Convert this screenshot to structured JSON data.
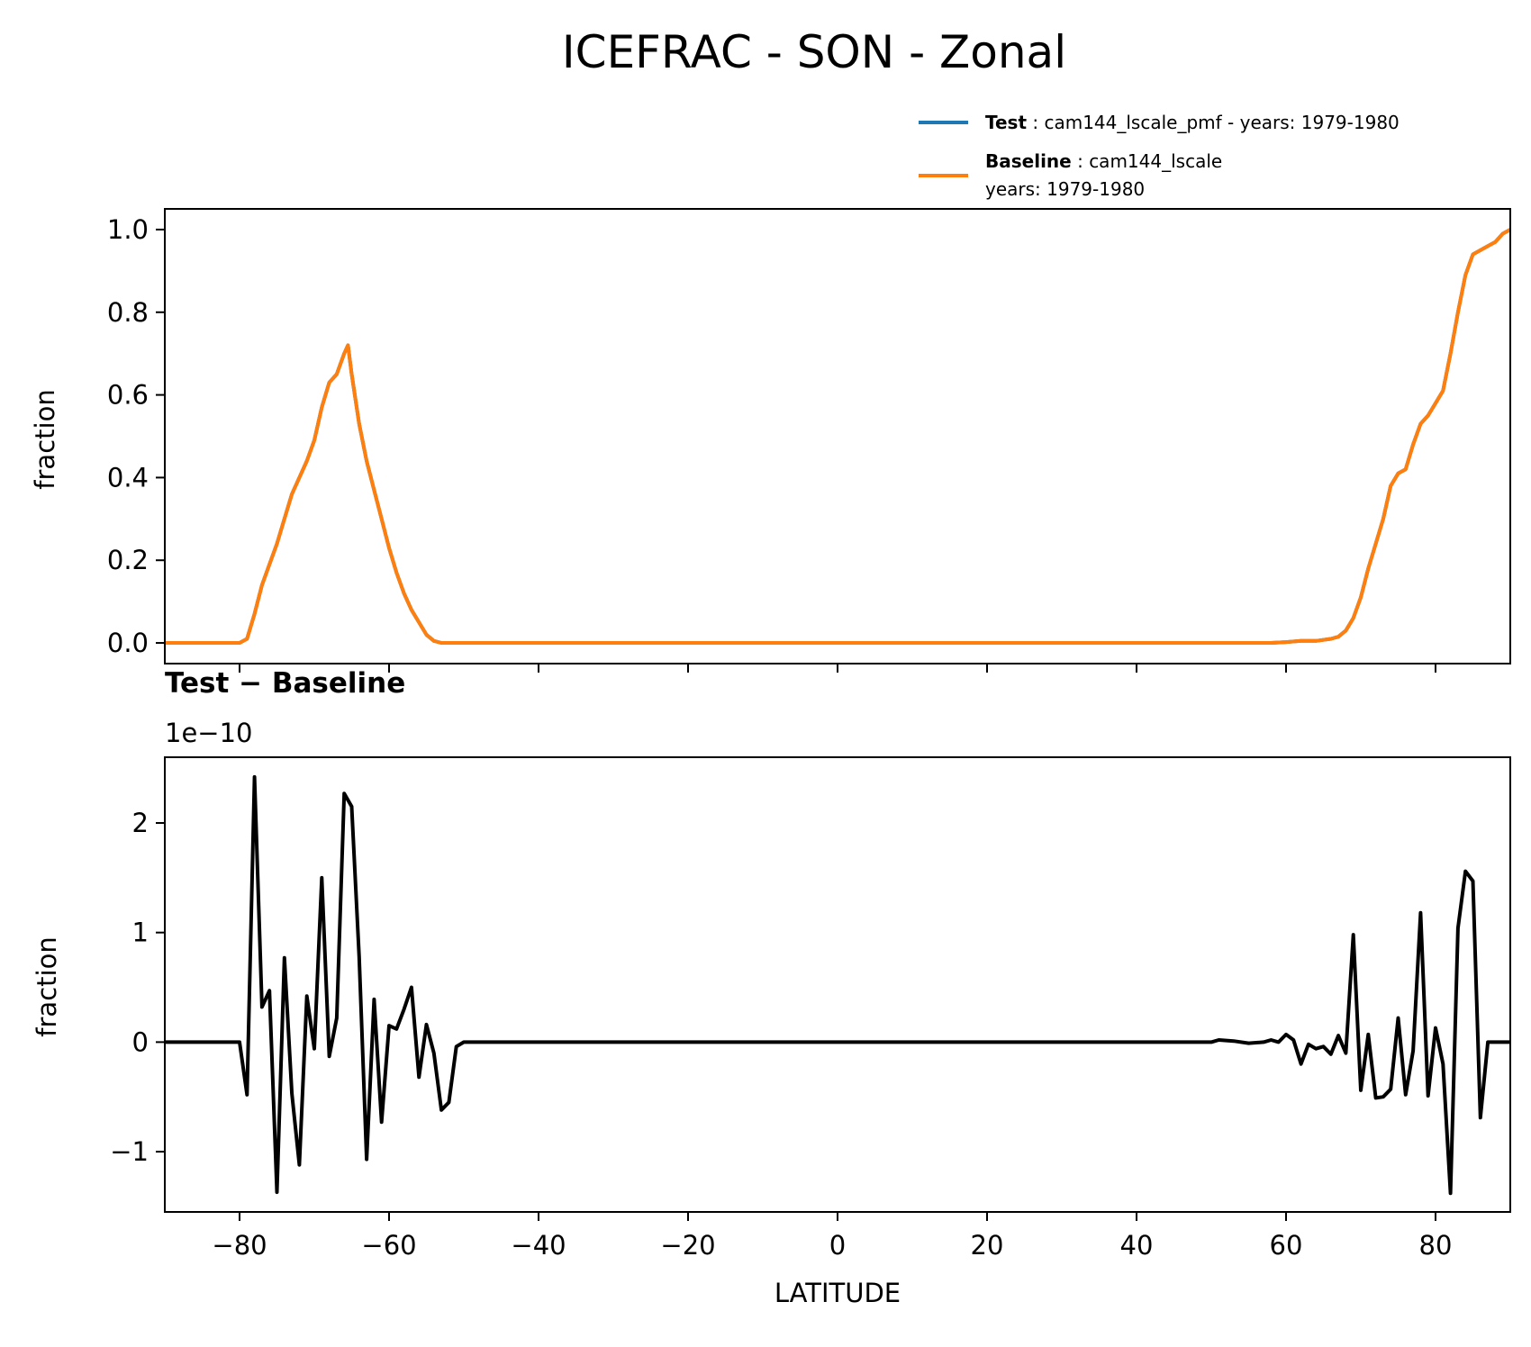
{
  "title": "ICEFRAC - SON - Zonal",
  "legend": {
    "test": {
      "label": "Test",
      "sep": " : ",
      "desc": "cam144_lscale_pmf - years: 1979-1980",
      "color": "#1f77b4"
    },
    "baseline": {
      "label": "Baseline",
      "sep": " : ",
      "desc": "cam144_lscale",
      "desc2": "years: 1979-1980",
      "color": "#ff7f0e"
    }
  },
  "chart_data": [
    {
      "type": "line",
      "ylabel": "fraction",
      "xlim": [
        -90,
        90
      ],
      "ylim": [
        -0.05,
        1.05
      ],
      "yticks": [
        0.0,
        0.2,
        0.4,
        0.6,
        0.8,
        1.0
      ],
      "ytick_labels": [
        "0.0",
        "0.2",
        "0.4",
        "0.6",
        "0.8",
        "1.0"
      ],
      "xticks": [
        -80,
        -60,
        -40,
        -20,
        0,
        20,
        40,
        60,
        80
      ],
      "series": [
        {
          "name": "Test",
          "color": "#1f77b4",
          "x": [
            -90,
            -80,
            -79,
            -78,
            -77,
            -76,
            -75,
            -74,
            -73,
            -72,
            -71,
            -70,
            -69,
            -68,
            -67,
            -66,
            -65.5,
            -65,
            -64,
            -63,
            -62,
            -61,
            -60,
            -59,
            -58,
            -57,
            -56,
            -55,
            -54,
            -53,
            -52,
            -50,
            0,
            50,
            58,
            60,
            62,
            64,
            66,
            67,
            68,
            69,
            70,
            71,
            72,
            73,
            74,
            75,
            76,
            77,
            78,
            79,
            80,
            81,
            82,
            83,
            84,
            85,
            86,
            87,
            88,
            89,
            90
          ],
          "y": [
            0,
            0,
            0.01,
            0.07,
            0.14,
            0.19,
            0.24,
            0.3,
            0.36,
            0.4,
            0.44,
            0.49,
            0.57,
            0.63,
            0.65,
            0.7,
            0.72,
            0.65,
            0.53,
            0.44,
            0.37,
            0.3,
            0.23,
            0.17,
            0.12,
            0.08,
            0.05,
            0.02,
            0.005,
            0,
            0,
            0,
            0,
            0,
            0,
            0.002,
            0.005,
            0.005,
            0.01,
            0.015,
            0.03,
            0.06,
            0.11,
            0.18,
            0.24,
            0.3,
            0.38,
            0.41,
            0.42,
            0.48,
            0.53,
            0.55,
            0.58,
            0.61,
            0.7,
            0.8,
            0.89,
            0.94,
            0.95,
            0.96,
            0.97,
            0.99,
            1.0
          ]
        },
        {
          "name": "Baseline",
          "color": "#ff7f0e",
          "x": [
            -90,
            -80,
            -79,
            -78,
            -77,
            -76,
            -75,
            -74,
            -73,
            -72,
            -71,
            -70,
            -69,
            -68,
            -67,
            -66,
            -65.5,
            -65,
            -64,
            -63,
            -62,
            -61,
            -60,
            -59,
            -58,
            -57,
            -56,
            -55,
            -54,
            -53,
            -52,
            -50,
            0,
            50,
            58,
            60,
            62,
            64,
            66,
            67,
            68,
            69,
            70,
            71,
            72,
            73,
            74,
            75,
            76,
            77,
            78,
            79,
            80,
            81,
            82,
            83,
            84,
            85,
            86,
            87,
            88,
            89,
            90
          ],
          "y": [
            0,
            0,
            0.01,
            0.07,
            0.14,
            0.19,
            0.24,
            0.3,
            0.36,
            0.4,
            0.44,
            0.49,
            0.57,
            0.63,
            0.65,
            0.7,
            0.72,
            0.65,
            0.53,
            0.44,
            0.37,
            0.3,
            0.23,
            0.17,
            0.12,
            0.08,
            0.05,
            0.02,
            0.005,
            0,
            0,
            0,
            0,
            0,
            0,
            0.002,
            0.005,
            0.005,
            0.01,
            0.015,
            0.03,
            0.06,
            0.11,
            0.18,
            0.24,
            0.3,
            0.38,
            0.41,
            0.42,
            0.48,
            0.53,
            0.55,
            0.58,
            0.61,
            0.7,
            0.8,
            0.89,
            0.94,
            0.95,
            0.96,
            0.97,
            0.99,
            1.0
          ]
        }
      ]
    },
    {
      "type": "line",
      "title": "Test − Baseline",
      "offset_label": "1e−10",
      "xlabel": "LATITUDE",
      "ylabel": "fraction",
      "xlim": [
        -90,
        90
      ],
      "ylim": [
        -1.55,
        2.6
      ],
      "yticks": [
        -1,
        0,
        1,
        2
      ],
      "ytick_labels": [
        "−1",
        "0",
        "1",
        "2"
      ],
      "xticks": [
        -80,
        -60,
        -40,
        -20,
        0,
        20,
        40,
        60,
        80
      ],
      "xtick_labels": [
        "−80",
        "−60",
        "−40",
        "−20",
        "0",
        "20",
        "40",
        "60",
        "80"
      ],
      "series": [
        {
          "name": "Test − Baseline",
          "color": "#000000",
          "x": [
            -90,
            -80,
            -79,
            -78,
            -77,
            -76,
            -75,
            -74,
            -73,
            -72,
            -71,
            -70,
            -69,
            -68,
            -67,
            -66,
            -65,
            -64,
            -63,
            -62,
            -61,
            -60,
            -59,
            -58,
            -57,
            -56,
            -55,
            -54,
            -53,
            -52,
            -51,
            -50,
            0,
            50,
            51,
            53,
            55,
            57,
            58,
            59,
            60,
            61,
            62,
            63,
            64,
            65,
            66,
            67,
            68,
            69,
            70,
            71,
            72,
            73,
            74,
            75,
            76,
            77,
            78,
            79,
            80,
            81,
            82,
            83,
            84,
            85,
            86,
            87,
            88,
            89,
            90
          ],
          "y": [
            0,
            0,
            -0.48,
            2.42,
            0.32,
            0.47,
            -1.37,
            0.77,
            -0.47,
            -1.12,
            0.42,
            -0.06,
            1.5,
            -0.13,
            0.22,
            2.27,
            2.15,
            0.78,
            -1.07,
            0.39,
            -0.73,
            0.15,
            0.12,
            0.3,
            0.5,
            -0.32,
            0.16,
            -0.1,
            -0.62,
            -0.55,
            -0.04,
            0,
            0,
            0,
            0.02,
            0.01,
            -0.01,
            0,
            0.02,
            0,
            0.07,
            0.02,
            -0.2,
            -0.02,
            -0.06,
            -0.04,
            -0.11,
            0.06,
            -0.1,
            0.98,
            -0.44,
            0.07,
            -0.51,
            -0.5,
            -0.43,
            0.22,
            -0.48,
            -0.08,
            1.18,
            -0.49,
            0.13,
            -0.2,
            -1.38,
            1.04,
            1.56,
            1.47,
            -0.69,
            0,
            0,
            0,
            0
          ]
        }
      ]
    }
  ]
}
